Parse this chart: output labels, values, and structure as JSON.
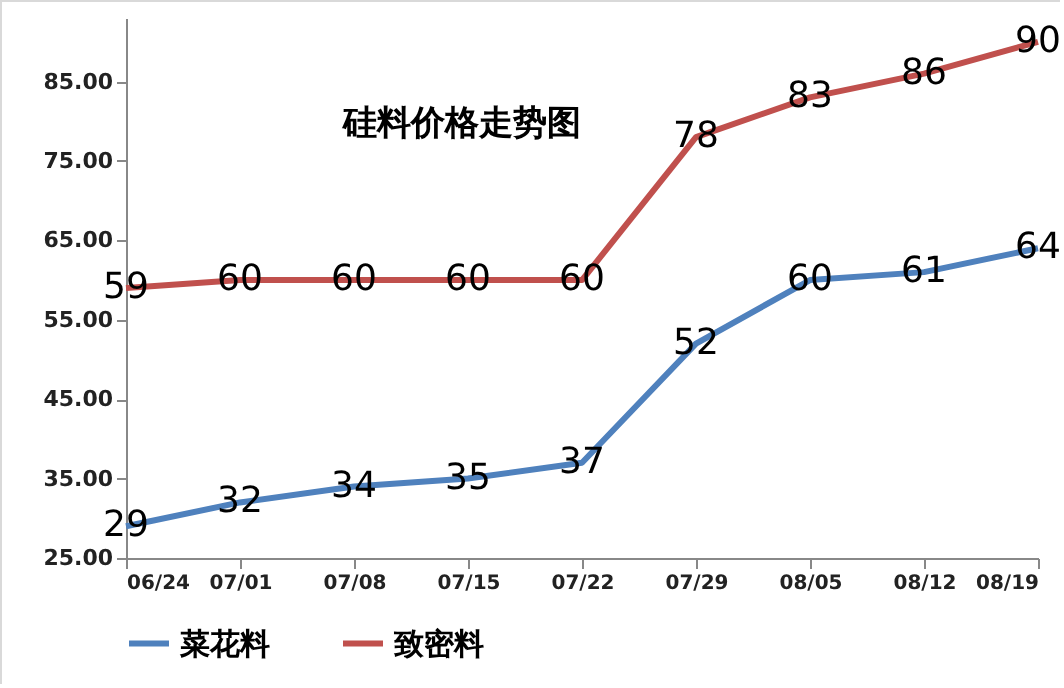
{
  "chart_data": {
    "type": "line",
    "title": "硅料价格走势图",
    "categories": [
      "06/24",
      "07/01",
      "07/08",
      "07/15",
      "07/22",
      "07/29",
      "08/05",
      "08/12",
      "08/19"
    ],
    "series": [
      {
        "name": "菜花料",
        "color": "#4f81bd",
        "values": [
          29,
          32,
          34,
          35,
          37,
          52,
          60,
          61,
          64
        ]
      },
      {
        "name": "致密料",
        "color": "#c0504d",
        "values": [
          59,
          60,
          60,
          60,
          60,
          78,
          83,
          86,
          90
        ]
      }
    ],
    "ylim": [
      25,
      93
    ],
    "yticks": [
      {
        "value": 25,
        "label": "25.00"
      },
      {
        "value": 35,
        "label": "35.00"
      },
      {
        "value": 45,
        "label": "45.00"
      },
      {
        "value": 55,
        "label": "55.00"
      },
      {
        "value": 65,
        "label": "65.00"
      },
      {
        "value": 75,
        "label": "75.00"
      },
      {
        "value": 85,
        "label": "85.00"
      }
    ],
    "data_labels": true,
    "legend": "bottom",
    "grid": false,
    "marker": "none",
    "line_style": "solid"
  }
}
